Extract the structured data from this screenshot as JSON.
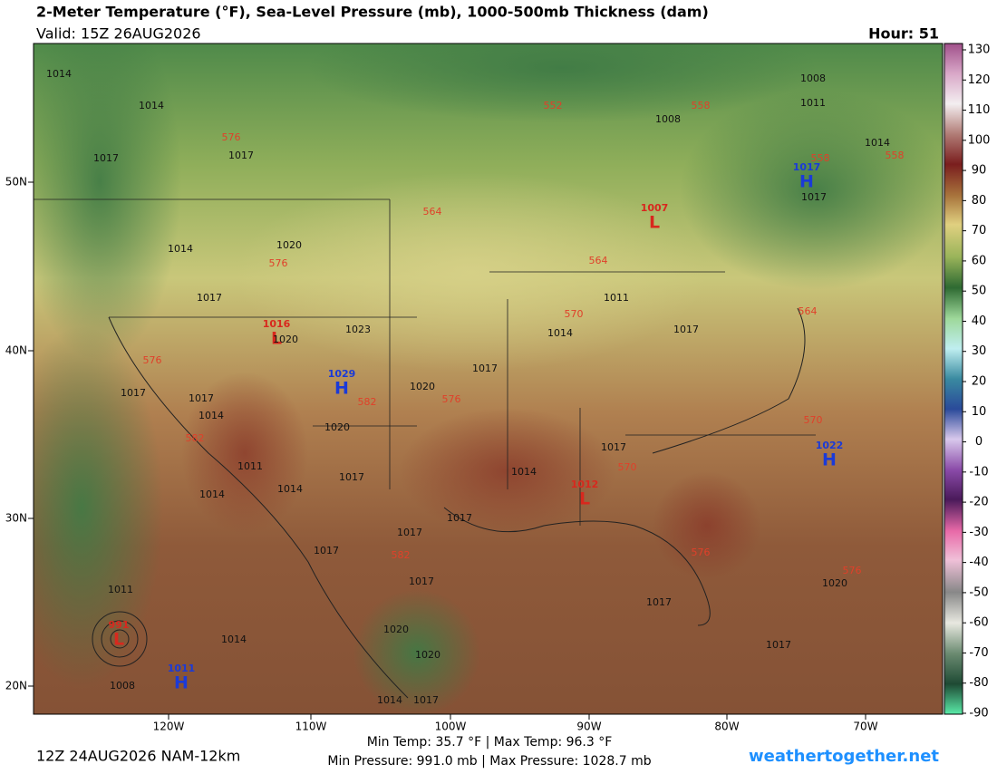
{
  "header": {
    "title": "2-Meter Temperature (°F), Sea-Level Pressure (mb), 1000-500mb Thickness (dam)",
    "valid": "Valid: 15Z 26AUG2026",
    "hour": "Hour: 51"
  },
  "colorbar": {
    "ticks": [
      130,
      120,
      110,
      100,
      90,
      80,
      70,
      60,
      50,
      40,
      30,
      20,
      10,
      0,
      -10,
      -20,
      -30,
      -40,
      -50,
      -60,
      -70,
      -80,
      -90
    ]
  },
  "lat_labels": [
    "50N",
    "40N",
    "30N",
    "20N"
  ],
  "lon_labels": [
    "120W",
    "110W",
    "100W",
    "90W",
    "80W",
    "70W"
  ],
  "centers": [
    {
      "letter": "H",
      "value": "1017"
    },
    {
      "letter": "H",
      "value": "1029"
    },
    {
      "letter": "H",
      "value": "1022"
    },
    {
      "letter": "H",
      "value": "1011"
    },
    {
      "letter": "L",
      "value": "1007"
    },
    {
      "letter": "L",
      "value": "1016"
    },
    {
      "letter": "L",
      "value": "991"
    },
    {
      "letter": "L",
      "value": "1012"
    }
  ],
  "isobar_labels": [
    "1014",
    "1014",
    "1017",
    "1017",
    "1008",
    "1011",
    "1008",
    "1014",
    "1017",
    "1014",
    "1020",
    "1017",
    "1011",
    "1014",
    "1017",
    "1020",
    "1023",
    "1017",
    "1017",
    "1017",
    "1014",
    "1020",
    "1020",
    "1017",
    "1011",
    "1014",
    "1014",
    "1014",
    "1017",
    "1017",
    "1017",
    "1017",
    "1017",
    "1011",
    "1014",
    "1008",
    "1020",
    "1020",
    "1014",
    "1017",
    "1017",
    "1017",
    "1020"
  ],
  "thickness_labels": [
    "552",
    "558",
    "576",
    "558",
    "558",
    "564",
    "576",
    "564",
    "570",
    "564",
    "576",
    "582",
    "576",
    "570",
    "582",
    "570",
    "582",
    "576",
    "576"
  ],
  "footer": {
    "temp": "Min Temp:  35.7 °F | Max Temp:  96.3 °F",
    "pressure": "Min Pressure: 991.0 mb | Max Pressure: 1028.7 mb",
    "run": "12Z 24AUG2026 NAM-12km",
    "site": "weathertogether.net"
  }
}
